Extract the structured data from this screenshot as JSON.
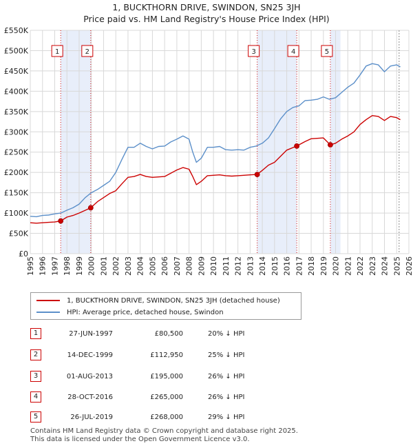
{
  "title_line1": "1, BUCKTHORN DRIVE, SWINDON, SN25 3JH",
  "title_line2": "Price paid vs. HM Land Registry's House Price Index (HPI)",
  "legend": {
    "property_label": "1, BUCKTHORN DRIVE, SWINDON, SN25 3JH (detached house)",
    "hpi_label": "HPI: Average price, detached house, Swindon"
  },
  "transactions": [
    {
      "num": "1",
      "date": "27-JUN-1997",
      "price": "£80,500",
      "hpi": "20% ↓ HPI"
    },
    {
      "num": "2",
      "date": "14-DEC-1999",
      "price": "£112,950",
      "hpi": "25% ↓ HPI"
    },
    {
      "num": "3",
      "date": "01-AUG-2013",
      "price": "£195,000",
      "hpi": "26% ↓ HPI"
    },
    {
      "num": "4",
      "date": "28-OCT-2016",
      "price": "£265,000",
      "hpi": "26% ↓ HPI"
    },
    {
      "num": "5",
      "date": "26-JUL-2019",
      "price": "£268,000",
      "hpi": "29% ↓ HPI"
    }
  ],
  "footer_line1": "Contains HM Land Registry data © Crown copyright and database right 2025.",
  "footer_line2": "This data is licensed under the Open Government Licence v3.0.",
  "colors": {
    "property": "#cc0000",
    "hpi": "#5b8fc9",
    "band": "#e8eefa",
    "grid": "#d8d8d8"
  },
  "chart_data": {
    "type": "line",
    "title": "Price paid vs. HM Land Registry's House Price Index (HPI)",
    "xlim": [
      1995,
      2026
    ],
    "ylim": [
      0,
      550000
    ],
    "x_ticks": [
      "1995",
      "1996",
      "1997",
      "1998",
      "1999",
      "2000",
      "2001",
      "2002",
      "2003",
      "2004",
      "2005",
      "2006",
      "2007",
      "2008",
      "2009",
      "2010",
      "2011",
      "2012",
      "2013",
      "2014",
      "2015",
      "2016",
      "2017",
      "2018",
      "2019",
      "2020",
      "2021",
      "2022",
      "2023",
      "2024",
      "2025",
      "2026"
    ],
    "y_ticks": [
      {
        "value": 0,
        "label": "£0"
      },
      {
        "value": 50000,
        "label": "£50K"
      },
      {
        "value": 100000,
        "label": "£100K"
      },
      {
        "value": 150000,
        "label": "£150K"
      },
      {
        "value": 200000,
        "label": "£200K"
      },
      {
        "value": 250000,
        "label": "£250K"
      },
      {
        "value": 300000,
        "label": "£300K"
      },
      {
        "value": 350000,
        "label": "£350K"
      },
      {
        "value": 400000,
        "label": "£400K"
      },
      {
        "value": 450000,
        "label": "£450K"
      },
      {
        "value": 500000,
        "label": "£500K"
      },
      {
        "value": 550000,
        "label": "£550K"
      }
    ],
    "bands": [
      [
        1997.49,
        1999.95
      ],
      [
        2013.58,
        2016.82
      ],
      [
        2019.57,
        2020.4
      ]
    ],
    "forecast_start": 2025.2,
    "sales": [
      {
        "label": "1",
        "x": 1997.49,
        "y": 80500
      },
      {
        "label": "2",
        "x": 1999.95,
        "y": 112950
      },
      {
        "label": "3",
        "x": 2013.58,
        "y": 195000
      },
      {
        "label": "4",
        "x": 2016.82,
        "y": 265000
      },
      {
        "label": "5",
        "x": 2019.57,
        "y": 268000
      }
    ],
    "series": [
      {
        "name": "HPI: Average price, detached house, Swindon",
        "x": [
          1995,
          1995.5,
          1996,
          1996.5,
          1997,
          1997.5,
          1998,
          1998.5,
          1999,
          1999.5,
          2000,
          2000.5,
          2001,
          2001.5,
          2002,
          2002.5,
          2003,
          2003.5,
          2004,
          2004.5,
          2005,
          2005.5,
          2006,
          2006.5,
          2007,
          2007.5,
          2008,
          2008.3,
          2008.6,
          2009,
          2009.5,
          2010,
          2010.5,
          2011,
          2011.5,
          2012,
          2012.5,
          2013,
          2013.5,
          2014,
          2014.5,
          2015,
          2015.5,
          2016,
          2016.5,
          2017,
          2017.5,
          2018,
          2018.5,
          2019,
          2019.5,
          2020,
          2020.5,
          2021,
          2021.5,
          2022,
          2022.5,
          2023,
          2023.5,
          2024,
          2024.5,
          2025,
          2025.3
        ],
        "values": [
          92000,
          91000,
          94000,
          95000,
          98000,
          100000,
          107000,
          113000,
          122000,
          138000,
          150000,
          158000,
          168000,
          178000,
          200000,
          232000,
          262000,
          262000,
          272000,
          264000,
          258000,
          264000,
          265000,
          275000,
          282000,
          290000,
          282000,
          250000,
          225000,
          235000,
          262000,
          262000,
          264000,
          256000,
          255000,
          256000,
          255000,
          262000,
          265000,
          272000,
          285000,
          308000,
          332000,
          350000,
          360000,
          364000,
          377000,
          378000,
          380000,
          386000,
          380000,
          384000,
          397000,
          410000,
          420000,
          440000,
          462000,
          468000,
          465000,
          448000,
          462000,
          465000,
          460000
        ]
      },
      {
        "name": "1, BUCKTHORN DRIVE, SWINDON, SN25 3JH (detached house)",
        "x": [
          1995,
          1995.5,
          1996,
          1996.5,
          1997,
          1997.49,
          1998,
          1998.5,
          1999,
          1999.95,
          2000.5,
          2001,
          2001.5,
          2002,
          2002.5,
          2003,
          2003.5,
          2004,
          2004.5,
          2005,
          2005.5,
          2006,
          2006.5,
          2007,
          2007.5,
          2008,
          2008.3,
          2008.6,
          2009,
          2009.5,
          2010,
          2010.5,
          2011,
          2011.5,
          2012,
          2012.5,
          2013,
          2013.58,
          2014,
          2014.5,
          2015,
          2015.5,
          2016,
          2016.82,
          2017.5,
          2018,
          2018.5,
          2019,
          2019.57,
          2020,
          2020.5,
          2021,
          2021.5,
          2022,
          2022.5,
          2023,
          2023.5,
          2024,
          2024.5,
          2025,
          2025.3
        ],
        "values": [
          76000,
          75000,
          76000,
          77000,
          78000,
          80500,
          90000,
          94000,
          100000,
          112950,
          128000,
          138000,
          148000,
          155000,
          172000,
          188000,
          190000,
          195000,
          190000,
          188000,
          189000,
          190000,
          198000,
          206000,
          212000,
          208000,
          190000,
          170000,
          178000,
          192000,
          193000,
          194000,
          192000,
          191000,
          192000,
          193000,
          194000,
          195000,
          205000,
          218000,
          225000,
          240000,
          255000,
          265000,
          276000,
          283000,
          284000,
          285000,
          268000,
          272000,
          282000,
          290000,
          300000,
          318000,
          330000,
          340000,
          338000,
          328000,
          338000,
          335000,
          330000
        ]
      }
    ]
  }
}
